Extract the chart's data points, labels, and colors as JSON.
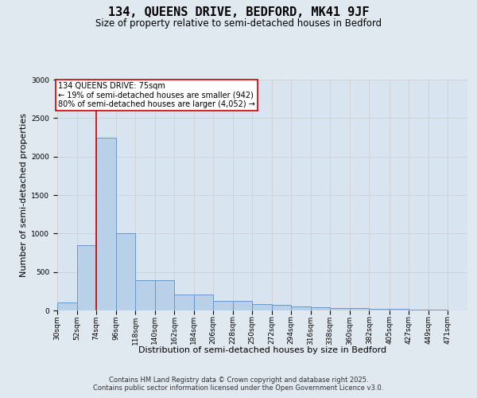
{
  "title": "134, QUEENS DRIVE, BEDFORD, MK41 9JF",
  "subtitle": "Size of property relative to semi-detached houses in Bedford",
  "xlabel": "Distribution of semi-detached houses by size in Bedford",
  "ylabel": "Number of semi-detached properties",
  "footer_line1": "Contains HM Land Registry data © Crown copyright and database right 2025.",
  "footer_line2": "Contains public sector information licensed under the Open Government Licence v3.0.",
  "annotation_title": "134 QUEENS DRIVE: 75sqm",
  "annotation_line1": "← 19% of semi-detached houses are smaller (942)",
  "annotation_line2": "80% of semi-detached houses are larger (4,052) →",
  "bin_labels": [
    "30sqm",
    "52sqm",
    "74sqm",
    "96sqm",
    "118sqm",
    "140sqm",
    "162sqm",
    "184sqm",
    "206sqm",
    "228sqm",
    "250sqm",
    "272sqm",
    "294sqm",
    "316sqm",
    "338sqm",
    "360sqm",
    "382sqm",
    "405sqm",
    "427sqm",
    "449sqm",
    "471sqm"
  ],
  "bin_edges": [
    30,
    52,
    74,
    96,
    118,
    140,
    162,
    184,
    206,
    228,
    250,
    272,
    294,
    316,
    338,
    360,
    382,
    405,
    427,
    449,
    471
  ],
  "bin_width": 22,
  "bar_heights": [
    100,
    850,
    2250,
    1000,
    390,
    390,
    210,
    210,
    120,
    120,
    80,
    70,
    55,
    45,
    35,
    30,
    25,
    18,
    12,
    8,
    4
  ],
  "bar_color": "#b8d0e8",
  "bar_edge_color": "#6699cc",
  "bar_linewidth": 0.7,
  "vline_x": 74,
  "vline_color": "#cc0000",
  "vline_linewidth": 1.2,
  "annotation_box_color": "#cc0000",
  "annotation_bg_color": "#ffffff",
  "ylim": [
    0,
    3000
  ],
  "yticks": [
    0,
    500,
    1000,
    1500,
    2000,
    2500,
    3000
  ],
  "grid_color": "#cccccc",
  "grid_linewidth": 0.5,
  "bg_color": "#e0e8f0",
  "plot_bg_color": "#d8e4f0",
  "title_fontsize": 11,
  "subtitle_fontsize": 8.5,
  "xlabel_fontsize": 8,
  "ylabel_fontsize": 8,
  "tick_fontsize": 6.5,
  "footer_fontsize": 6,
  "annotation_fontsize": 7
}
